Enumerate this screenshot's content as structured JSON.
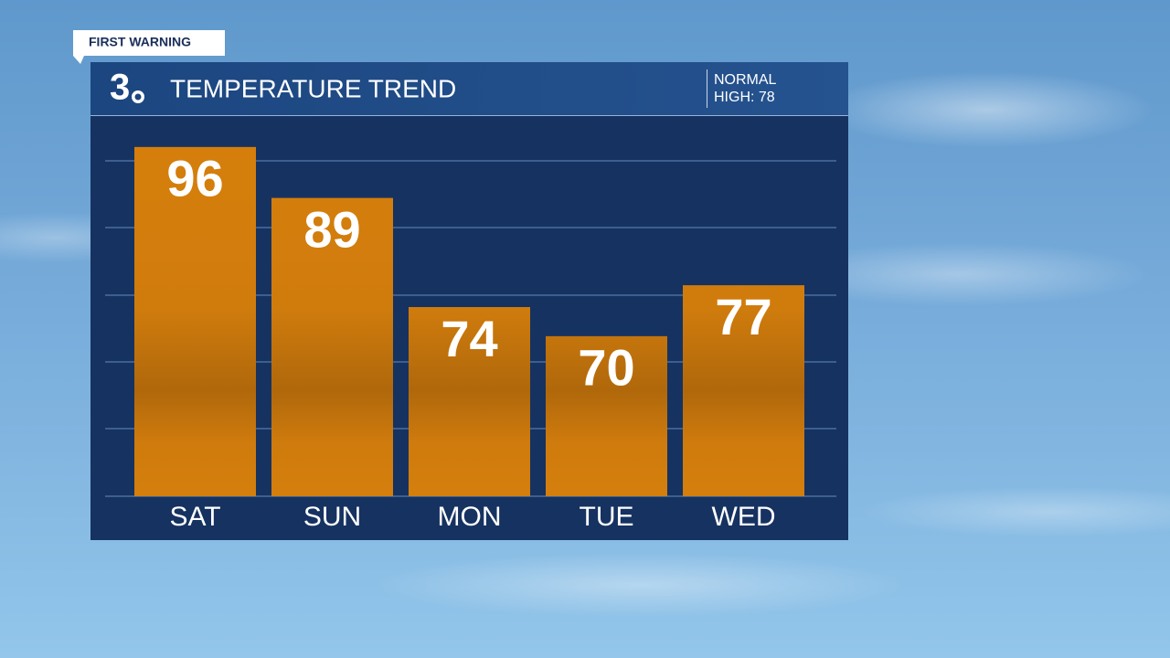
{
  "chart_data": {
    "type": "bar",
    "badge": "FIRST WARNING",
    "logo": "3",
    "title": "TEMPERATURE TREND",
    "normal_label": "NORMAL",
    "normal_high_label": "HIGH: 78",
    "categories": [
      "SAT",
      "SUN",
      "MON",
      "TUE",
      "WED"
    ],
    "values": [
      96,
      89,
      74,
      70,
      77
    ],
    "color": "#d47f0d",
    "ylim": [
      48,
      100
    ]
  }
}
